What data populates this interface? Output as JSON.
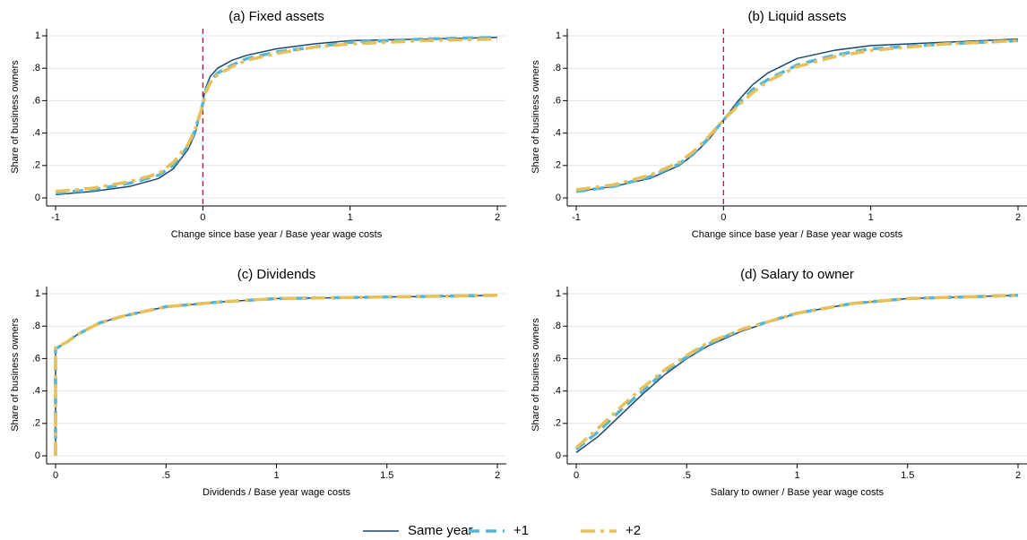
{
  "chart_data": [
    {
      "type": "line",
      "title": "(a) Fixed assets",
      "xlabel": "Change since base year / Base year wage costs",
      "ylabel": "Share of business owners",
      "x": [
        -1,
        -0.75,
        -0.5,
        -0.3,
        -0.2,
        -0.1,
        -0.05,
        0,
        0.02,
        0.05,
        0.1,
        0.2,
        0.3,
        0.5,
        0.75,
        1,
        1.5,
        2
      ],
      "series": [
        {
          "name": "Same year",
          "color": "#1a476f",
          "style": "solid",
          "values": [
            0.02,
            0.04,
            0.07,
            0.12,
            0.18,
            0.3,
            0.4,
            0.6,
            0.68,
            0.75,
            0.8,
            0.85,
            0.88,
            0.92,
            0.95,
            0.97,
            0.98,
            0.99
          ]
        },
        {
          "name": "+1",
          "color": "#55b7d6",
          "style": "dash",
          "values": [
            0.03,
            0.05,
            0.09,
            0.14,
            0.2,
            0.32,
            0.42,
            0.58,
            0.66,
            0.72,
            0.77,
            0.82,
            0.86,
            0.9,
            0.93,
            0.96,
            0.98,
            0.99
          ]
        },
        {
          "name": "+2",
          "color": "#e8c05a",
          "style": "dashdot",
          "values": [
            0.04,
            0.06,
            0.1,
            0.15,
            0.22,
            0.33,
            0.43,
            0.57,
            0.65,
            0.71,
            0.76,
            0.81,
            0.85,
            0.89,
            0.93,
            0.95,
            0.97,
            0.98
          ]
        }
      ],
      "xlim": [
        -1,
        2
      ],
      "ylim": [
        0,
        1
      ],
      "xticks": [
        -1,
        0,
        1,
        2
      ],
      "yticks": [
        0,
        {
          "value": 0.2,
          "label": ".2"
        },
        {
          "value": 0.4,
          "label": ".4"
        },
        {
          "value": 0.6,
          "label": ".6"
        },
        {
          "value": 0.8,
          "label": ".8"
        },
        1
      ],
      "grid": true,
      "reference_line_x": 0,
      "reference_color": "#c10534"
    },
    {
      "type": "line",
      "title": "(b) Liquid assets",
      "xlabel": "Change since base year / Base year wage costs",
      "ylabel": "Share of business owners",
      "x": [
        -1,
        -0.75,
        -0.5,
        -0.3,
        -0.2,
        -0.1,
        0,
        0.1,
        0.2,
        0.3,
        0.5,
        0.75,
        1,
        1.5,
        2
      ],
      "series": [
        {
          "color": "#1a476f",
          "style": "solid",
          "values": [
            0.04,
            0.07,
            0.12,
            0.2,
            0.27,
            0.36,
            0.48,
            0.6,
            0.7,
            0.77,
            0.86,
            0.91,
            0.94,
            0.96,
            0.98
          ]
        },
        {
          "color": "#55b7d6",
          "style": "dash",
          "values": [
            0.04,
            0.07,
            0.13,
            0.21,
            0.28,
            0.37,
            0.48,
            0.58,
            0.67,
            0.73,
            0.82,
            0.88,
            0.92,
            0.95,
            0.97
          ]
        },
        {
          "color": "#e8c05a",
          "style": "dashdot",
          "values": [
            0.05,
            0.08,
            0.14,
            0.22,
            0.29,
            0.38,
            0.48,
            0.57,
            0.65,
            0.72,
            0.81,
            0.87,
            0.91,
            0.95,
            0.97
          ]
        }
      ],
      "xlim": [
        -1,
        2
      ],
      "ylim": [
        0,
        1
      ],
      "xticks": [
        -1,
        0,
        1,
        2
      ],
      "yticks": [
        0,
        {
          "value": 0.2,
          "label": ".2"
        },
        {
          "value": 0.4,
          "label": ".4"
        },
        {
          "value": 0.6,
          "label": ".6"
        },
        {
          "value": 0.8,
          "label": ".8"
        },
        1
      ],
      "grid": true,
      "reference_line_x": 0,
      "reference_color": "#c10534"
    },
    {
      "type": "line",
      "title": "(c) Dividends",
      "xlabel": "Dividends / Base year wage costs",
      "ylabel": "Share of business owners",
      "x": [
        0,
        0,
        0.05,
        0.1,
        0.2,
        0.3,
        0.5,
        0.75,
        1,
        1.5,
        2
      ],
      "series": [
        {
          "color": "#1a476f",
          "style": "solid",
          "values": [
            0,
            0.66,
            0.7,
            0.75,
            0.82,
            0.86,
            0.92,
            0.95,
            0.97,
            0.98,
            0.99
          ]
        },
        {
          "color": "#55b7d6",
          "style": "dash",
          "values": [
            0,
            0.66,
            0.7,
            0.75,
            0.82,
            0.86,
            0.92,
            0.95,
            0.97,
            0.98,
            0.99
          ]
        },
        {
          "color": "#e8c05a",
          "style": "dashdot",
          "values": [
            0,
            0.67,
            0.7,
            0.75,
            0.82,
            0.86,
            0.92,
            0.95,
            0.97,
            0.98,
            0.99
          ]
        }
      ],
      "xlim": [
        0,
        2
      ],
      "ylim": [
        0,
        1
      ],
      "xticks": [
        0,
        {
          "value": 0.5,
          "label": ".5"
        },
        1,
        1.5,
        2
      ],
      "yticks": [
        0,
        {
          "value": 0.2,
          "label": ".2"
        },
        {
          "value": 0.4,
          "label": ".4"
        },
        {
          "value": 0.6,
          "label": ".6"
        },
        {
          "value": 0.8,
          "label": ".8"
        },
        1
      ],
      "grid": true
    },
    {
      "type": "line",
      "title": "(d) Salary to owner",
      "xlabel": "Salary to owner / Base year wage costs",
      "ylabel": "Share of business owners",
      "x": [
        0,
        0.1,
        0.2,
        0.3,
        0.4,
        0.5,
        0.6,
        0.75,
        1,
        1.25,
        1.5,
        2
      ],
      "series": [
        {
          "color": "#1a476f",
          "style": "solid",
          "values": [
            0.02,
            0.12,
            0.25,
            0.38,
            0.5,
            0.6,
            0.68,
            0.77,
            0.88,
            0.94,
            0.97,
            0.99
          ]
        },
        {
          "color": "#55b7d6",
          "style": "dash",
          "values": [
            0.04,
            0.15,
            0.28,
            0.4,
            0.52,
            0.61,
            0.69,
            0.78,
            0.88,
            0.94,
            0.97,
            0.99
          ]
        },
        {
          "color": "#e8c05a",
          "style": "dashdot",
          "values": [
            0.05,
            0.17,
            0.3,
            0.42,
            0.53,
            0.62,
            0.7,
            0.78,
            0.88,
            0.94,
            0.97,
            0.99
          ]
        }
      ],
      "xlim": [
        0,
        2
      ],
      "ylim": [
        0,
        1
      ],
      "xticks": [
        0,
        {
          "value": 0.5,
          "label": ".5"
        },
        1,
        1.5,
        2
      ],
      "yticks": [
        0,
        {
          "value": 0.2,
          "label": ".2"
        },
        {
          "value": 0.4,
          "label": ".4"
        },
        {
          "value": 0.6,
          "label": ".6"
        },
        {
          "value": 0.8,
          "label": ".8"
        },
        1
      ],
      "grid": true
    }
  ]
}
